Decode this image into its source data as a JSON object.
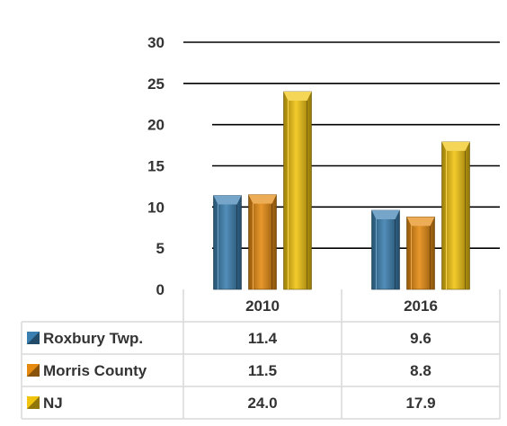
{
  "chart_data": {
    "type": "bar",
    "title": "",
    "xlabel": "",
    "ylabel": "",
    "categories": [
      "2010",
      "2016"
    ],
    "series": [
      {
        "name": "Roxbury Twp.",
        "values": [
          11.4,
          9.6
        ],
        "value_labels": [
          "11.4",
          "9.6"
        ],
        "color": "#3a7fb0"
      },
      {
        "name": "Morris County",
        "values": [
          11.5,
          8.8
        ],
        "value_labels": [
          "11.5",
          "8.8"
        ],
        "color": "#e58a0f"
      },
      {
        "name": "NJ",
        "values": [
          24.0,
          17.9
        ],
        "value_labels": [
          "24.0",
          "17.9"
        ],
        "color": "#f1c40f"
      }
    ],
    "ylim": [
      0,
      30
    ],
    "yticks": [
      "0",
      "5",
      "10",
      "15",
      "20",
      "25",
      "30"
    ],
    "grid": true,
    "legend": "data-table-left",
    "bar_style": "3d-beveled"
  }
}
